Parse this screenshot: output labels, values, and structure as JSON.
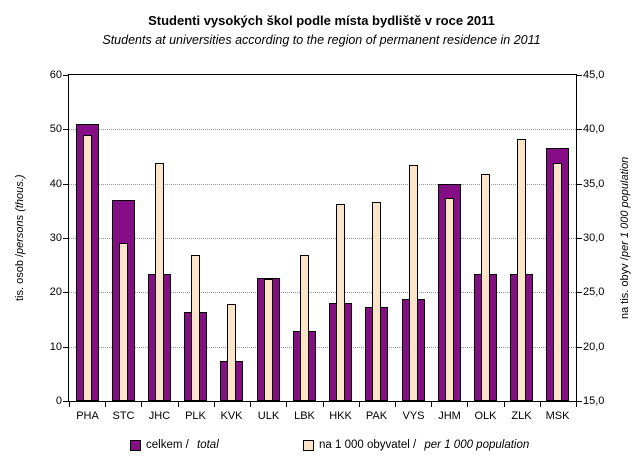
{
  "chart_data": {
    "type": "bar",
    "title": "Studenti vysokých škol podle místa bydliště v roce 2011",
    "subtitle": "Students at universities according to the region of permanent residence in 2011",
    "categories": [
      "PHA",
      "STC",
      "JHC",
      "PLK",
      "KVK",
      "ULK",
      "LBK",
      "HKK",
      "PAK",
      "VYS",
      "JHM",
      "OLK",
      "ZLK",
      "MSK"
    ],
    "series": [
      {
        "name": "celkem / total",
        "axis": "left",
        "color": "#850D85",
        "values": [
          51.0,
          37.0,
          23.3,
          16.3,
          7.4,
          22.6,
          12.8,
          18.1,
          17.3,
          18.7,
          40.0,
          23.3,
          23.4,
          46.6
        ]
      },
      {
        "name": "na 1 000 obyvatel / per 1 000 population",
        "axis": "right",
        "color": "#FCE4C6",
        "values": [
          39.5,
          29.5,
          36.9,
          28.4,
          23.9,
          26.2,
          28.4,
          33.1,
          33.3,
          36.7,
          33.7,
          35.9,
          39.1,
          36.9
        ]
      }
    ],
    "left_axis": {
      "label_normal": "tis. osob / ",
      "label_italic": "persons (thous.)",
      "min": 0,
      "max": 60,
      "tick_step": 10,
      "ticks": [
        "0",
        "10",
        "20",
        "30",
        "40",
        "50",
        "60"
      ]
    },
    "right_axis": {
      "label_normal": "na tis. obyv / ",
      "label_italic": "per 1 000 population",
      "min": 15,
      "max": 45,
      "tick_step": 5,
      "ticks": [
        "15,0",
        "20,0",
        "25,0",
        "30,0",
        "35,0",
        "40,0",
        "45,0"
      ]
    },
    "legend": [
      {
        "label_normal": "celkem / ",
        "label_italic": "total",
        "color": "#850D85"
      },
      {
        "label_normal": "na 1 000 obyvatel / ",
        "label_italic": "per 1 000 population",
        "color": "#FCE4C6"
      }
    ],
    "grid": "horizontal-dotted",
    "legend_position": "bottom"
  },
  "colors": {
    "bar_total": "#850D85",
    "bar_per1000": "#FCE4C6",
    "bar_border": "#000000",
    "grid": "#999999",
    "axis": "#000000"
  }
}
